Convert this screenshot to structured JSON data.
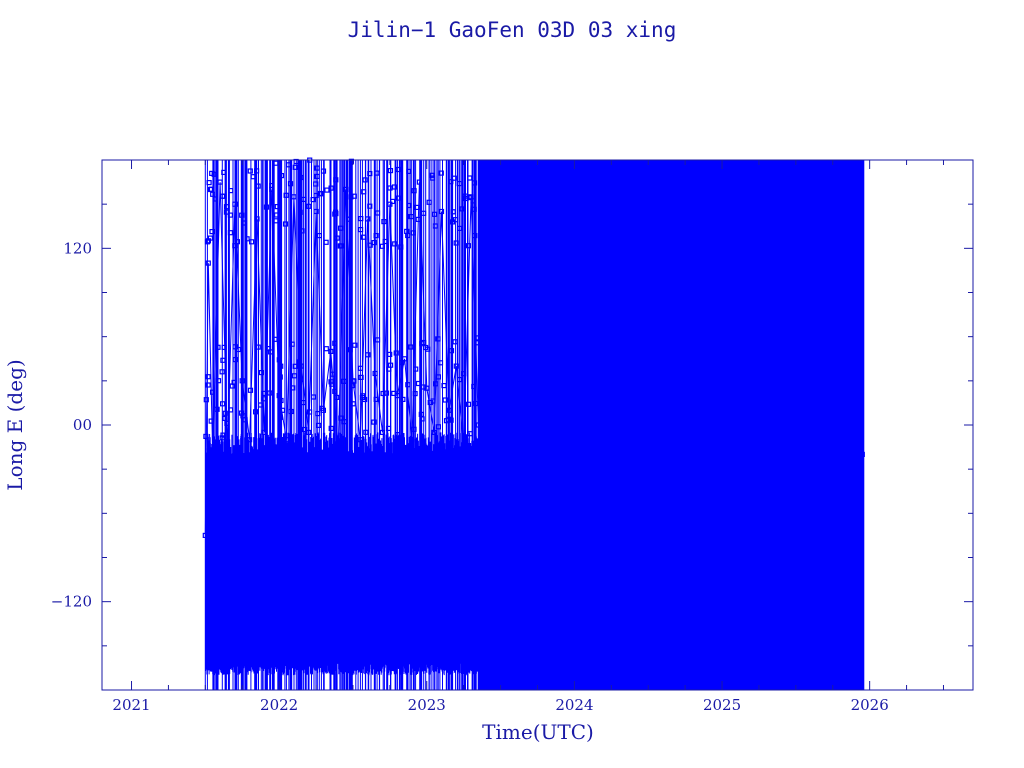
{
  "chart_data": {
    "type": "line",
    "title": "Jilin−1 GaoFen 03D 03 xing",
    "xlabel": "Time(UTC)",
    "ylabel": "Long E (deg)",
    "x_ticks": [
      "2021",
      "2022",
      "2023",
      "2024",
      "2025",
      "2026"
    ],
    "y_ticks": [
      "120",
      "00",
      "−120"
    ],
    "xlim": [
      2020.8,
      2026.7
    ],
    "ylim": [
      -180,
      180
    ],
    "grid": false,
    "series_color": "#0000ff",
    "axis_color": "#1a1aa6",
    "series": [
      {
        "x_start": 2021.5,
        "x_end": 2025.96,
        "x": [
          2021.5,
          2021.52,
          2021.55,
          2021.6,
          2021.65,
          2021.7,
          2021.75,
          2021.8,
          2021.85,
          2021.9,
          2021.95,
          2022.0,
          2022.05,
          2022.1,
          2022.15,
          2022.2,
          2022.25,
          2022.3,
          2022.35,
          2022.4,
          2022.45,
          2022.5,
          2022.55,
          2022.6,
          2022.65,
          2022.7,
          2022.75,
          2022.8,
          2022.85,
          2022.9,
          2022.95,
          2023.0,
          2023.05,
          2023.1,
          2023.15,
          2023.2,
          2023.25,
          2023.3,
          2023.35,
          2023.4,
          2023.45,
          2023.55,
          2023.65,
          2023.75,
          2023.85,
          2023.95,
          2024.05,
          2024.15,
          2024.25,
          2024.35,
          2024.45,
          2024.55,
          2024.65,
          2024.75,
          2024.85,
          2024.95,
          2025.05,
          2025.15,
          2025.25,
          2025.35,
          2025.45,
          2025.55,
          2025.65,
          2025.75,
          2025.85,
          2025.95
        ],
        "y": [
          -75,
          110,
          -20,
          165,
          -15,
          150,
          30,
          -10,
          140,
          -5,
          160,
          20,
          -10,
          155,
          40,
          -5,
          145,
          10,
          50,
          -15,
          160,
          30,
          -10,
          140,
          35,
          -5,
          150,
          20,
          45,
          -10,
          165,
          25,
          -5,
          145,
          10,
          40,
          -15,
          155,
          0,
          175,
          -170,
          120,
          -160,
          150,
          -140,
          170,
          -120,
          160,
          -175,
          140,
          -150,
          165,
          -130,
          155,
          -170,
          145,
          -160,
          170,
          -140,
          150,
          -175,
          160,
          -150,
          130,
          110,
          -20
        ]
      }
    ]
  }
}
